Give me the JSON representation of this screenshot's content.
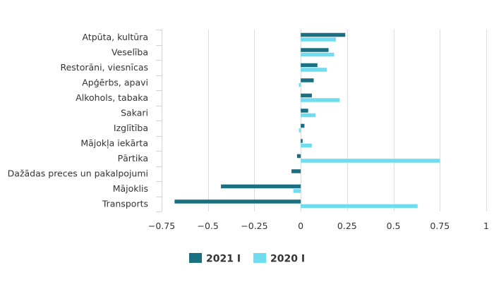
{
  "chart_data": {
    "type": "bar",
    "orientation": "horizontal",
    "categories": [
      "Atpūta, kultūra",
      "Veselība",
      "Restorāni, viesnīcas",
      "Apģērbs, apavi",
      "Alkohols, tabaka",
      "Sakari",
      "Izglītība",
      "Mājokļa iekārta",
      "Pārtika",
      "Dažādas preces un pakalpojumi",
      "Mājoklis",
      "Transports"
    ],
    "series": [
      {
        "name": "2021 I",
        "color": "#1a6f80",
        "values": [
          0.24,
          0.15,
          0.09,
          0.07,
          0.06,
          0.04,
          0.02,
          0.01,
          -0.02,
          -0.05,
          -0.43,
          -0.68
        ]
      },
      {
        "name": "2020 I",
        "color": "#6fdcef",
        "values": [
          0.19,
          0.18,
          0.14,
          -0.01,
          0.21,
          0.08,
          -0.01,
          0.06,
          0.75,
          0.0,
          -0.04,
          0.63
        ]
      }
    ],
    "xlim": [
      -0.75,
      1
    ],
    "ticks": [
      -0.75,
      -0.5,
      -0.25,
      0,
      0.25,
      0.5,
      0.75,
      1
    ],
    "tick_labels": [
      "−0.75",
      "−0.5",
      "−0.25",
      "0",
      "0.25",
      "0.5",
      "0.75",
      "1"
    ],
    "grid": true,
    "legend_position": "bottom-center"
  }
}
